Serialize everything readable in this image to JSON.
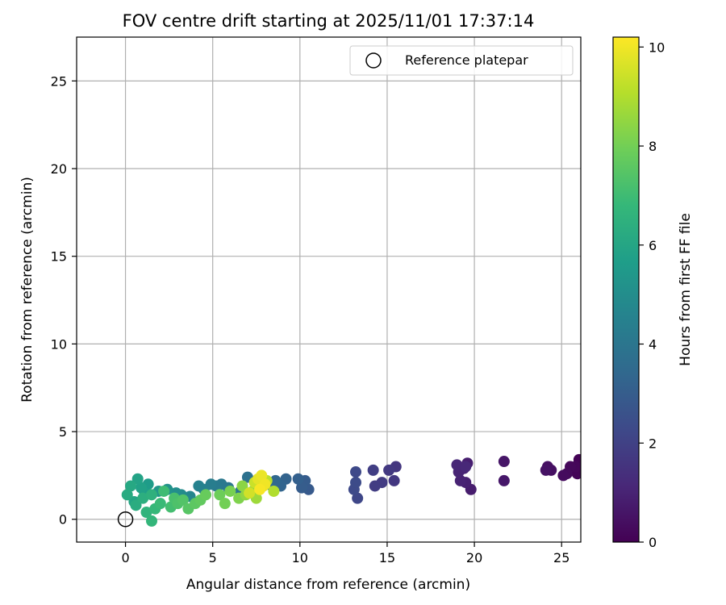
{
  "chart_data": {
    "type": "scatter",
    "title": "FOV centre drift starting at 2025/11/01 17:37:14",
    "xlabel": "Angular distance from reference (arcmin)",
    "ylabel": "Rotation from reference (arcmin)",
    "xlim": [
      -2.8,
      26.1
    ],
    "ylim": [
      -1.3,
      27.5
    ],
    "xticks": [
      0,
      5,
      10,
      15,
      20,
      25
    ],
    "yticks": [
      0,
      5,
      10,
      15,
      20,
      25
    ],
    "grid": true,
    "legend": {
      "placement": "top-right",
      "entries": [
        "Reference platepar"
      ]
    },
    "colorbar": {
      "label": "Hours from first FF file",
      "colormap": "viridis",
      "range": [
        0,
        10.2
      ],
      "ticks": [
        0,
        2,
        4,
        6,
        8,
        10
      ],
      "stops": [
        "#440154",
        "#482878",
        "#3e4989",
        "#31688e",
        "#26828e",
        "#1f9e89",
        "#35b779",
        "#6ece58",
        "#b5de2b",
        "#fde725"
      ]
    },
    "reference": {
      "x": 0,
      "y": 0
    },
    "series": [
      {
        "name": "FOV centre drift",
        "points": [
          {
            "x": 26.0,
            "y": 3.4,
            "t": 0.05
          },
          {
            "x": 25.9,
            "y": 2.6,
            "t": 0.1
          },
          {
            "x": 25.8,
            "y": 3.0,
            "t": 0.15
          },
          {
            "x": 25.5,
            "y": 3.0,
            "t": 0.2
          },
          {
            "x": 25.3,
            "y": 2.6,
            "t": 0.25
          },
          {
            "x": 25.1,
            "y": 2.5,
            "t": 0.3
          },
          {
            "x": 24.4,
            "y": 2.8,
            "t": 0.4
          },
          {
            "x": 24.2,
            "y": 3.0,
            "t": 0.45
          },
          {
            "x": 24.1,
            "y": 2.8,
            "t": 0.5
          },
          {
            "x": 21.7,
            "y": 3.3,
            "t": 0.6
          },
          {
            "x": 21.7,
            "y": 2.2,
            "t": 0.65
          },
          {
            "x": 19.8,
            "y": 1.7,
            "t": 0.8
          },
          {
            "x": 19.6,
            "y": 3.2,
            "t": 0.85
          },
          {
            "x": 19.5,
            "y": 2.1,
            "t": 0.9
          },
          {
            "x": 19.4,
            "y": 2.9,
            "t": 0.95
          },
          {
            "x": 19.2,
            "y": 2.2,
            "t": 1.0
          },
          {
            "x": 19.1,
            "y": 2.7,
            "t": 1.05
          },
          {
            "x": 19.0,
            "y": 3.1,
            "t": 1.1
          },
          {
            "x": 19.5,
            "y": 3.0,
            "t": 1.15
          },
          {
            "x": 15.5,
            "y": 3.0,
            "t": 1.6
          },
          {
            "x": 15.4,
            "y": 2.2,
            "t": 1.65
          },
          {
            "x": 15.1,
            "y": 2.8,
            "t": 1.7
          },
          {
            "x": 14.7,
            "y": 2.1,
            "t": 1.8
          },
          {
            "x": 14.3,
            "y": 1.9,
            "t": 1.85
          },
          {
            "x": 14.2,
            "y": 2.8,
            "t": 1.9
          },
          {
            "x": 13.3,
            "y": 1.2,
            "t": 2.2
          },
          {
            "x": 13.2,
            "y": 2.7,
            "t": 2.25
          },
          {
            "x": 13.1,
            "y": 1.7,
            "t": 2.3
          },
          {
            "x": 13.2,
            "y": 2.1,
            "t": 2.35
          },
          {
            "x": 10.5,
            "y": 1.7,
            "t": 2.9
          },
          {
            "x": 10.3,
            "y": 2.2,
            "t": 2.95
          },
          {
            "x": 10.1,
            "y": 1.8,
            "t": 3.0
          },
          {
            "x": 9.9,
            "y": 2.3,
            "t": 3.1
          },
          {
            "x": 9.2,
            "y": 2.3,
            "t": 3.2
          },
          {
            "x": 8.9,
            "y": 1.9,
            "t": 3.3
          },
          {
            "x": 8.6,
            "y": 2.2,
            "t": 3.4
          },
          {
            "x": 8.2,
            "y": 2.0,
            "t": 3.5
          },
          {
            "x": 7.6,
            "y": 1.8,
            "t": 3.6
          },
          {
            "x": 7.2,
            "y": 1.5,
            "t": 3.7
          },
          {
            "x": 7.0,
            "y": 2.4,
            "t": 3.8
          },
          {
            "x": 6.6,
            "y": 1.6,
            "t": 3.9
          },
          {
            "x": 5.9,
            "y": 1.8,
            "t": 4.0
          },
          {
            "x": 5.5,
            "y": 2.0,
            "t": 4.1
          },
          {
            "x": 5.2,
            "y": 1.9,
            "t": 4.2
          },
          {
            "x": 4.9,
            "y": 2.0,
            "t": 4.3
          },
          {
            "x": 4.5,
            "y": 1.7,
            "t": 4.4
          },
          {
            "x": 4.2,
            "y": 1.9,
            "t": 4.5
          },
          {
            "x": 3.7,
            "y": 1.3,
            "t": 4.7
          },
          {
            "x": 3.2,
            "y": 1.4,
            "t": 4.9
          },
          {
            "x": 2.9,
            "y": 1.5,
            "t": 5.0
          },
          {
            "x": 2.4,
            "y": 1.7,
            "t": 5.2
          },
          {
            "x": 1.9,
            "y": 1.6,
            "t": 5.4
          },
          {
            "x": 1.3,
            "y": 2.0,
            "t": 5.6
          },
          {
            "x": 1.1,
            "y": 1.5,
            "t": 5.7
          },
          {
            "x": 0.9,
            "y": 1.8,
            "t": 5.8
          },
          {
            "x": 0.7,
            "y": 2.3,
            "t": 5.9
          },
          {
            "x": 0.5,
            "y": 1.0,
            "t": 6.0
          },
          {
            "x": 0.3,
            "y": 1.9,
            "t": 6.1
          },
          {
            "x": 0.1,
            "y": 1.4,
            "t": 6.2
          },
          {
            "x": 0.6,
            "y": 0.8,
            "t": 6.3
          },
          {
            "x": 1.0,
            "y": 1.2,
            "t": 6.4
          },
          {
            "x": 1.5,
            "y": 1.4,
            "t": 6.5
          },
          {
            "x": 1.2,
            "y": 0.4,
            "t": 6.6
          },
          {
            "x": 1.5,
            "y": -0.1,
            "t": 6.7
          },
          {
            "x": 1.7,
            "y": 0.6,
            "t": 6.8
          },
          {
            "x": 2.0,
            "y": 0.9,
            "t": 6.9
          },
          {
            "x": 2.2,
            "y": 1.6,
            "t": 7.0
          },
          {
            "x": 2.6,
            "y": 0.7,
            "t": 7.1
          },
          {
            "x": 2.8,
            "y": 1.2,
            "t": 7.2
          },
          {
            "x": 3.0,
            "y": 0.9,
            "t": 7.3
          },
          {
            "x": 3.3,
            "y": 1.1,
            "t": 7.4
          },
          {
            "x": 3.6,
            "y": 0.6,
            "t": 7.5
          },
          {
            "x": 4.0,
            "y": 0.9,
            "t": 7.6
          },
          {
            "x": 4.3,
            "y": 1.1,
            "t": 7.7
          },
          {
            "x": 4.6,
            "y": 1.4,
            "t": 7.8
          },
          {
            "x": 5.4,
            "y": 1.4,
            "t": 7.9
          },
          {
            "x": 5.7,
            "y": 0.9,
            "t": 8.0
          },
          {
            "x": 6.0,
            "y": 1.6,
            "t": 8.1
          },
          {
            "x": 6.5,
            "y": 1.2,
            "t": 8.2
          },
          {
            "x": 6.7,
            "y": 1.9,
            "t": 8.4
          },
          {
            "x": 6.9,
            "y": 1.4,
            "t": 8.5
          },
          {
            "x": 7.3,
            "y": 1.6,
            "t": 8.6
          },
          {
            "x": 7.5,
            "y": 1.2,
            "t": 8.7
          },
          {
            "x": 7.7,
            "y": 1.9,
            "t": 8.9
          },
          {
            "x": 8.5,
            "y": 1.6,
            "t": 9.0
          },
          {
            "x": 8.1,
            "y": 2.2,
            "t": 9.2
          },
          {
            "x": 7.4,
            "y": 2.1,
            "t": 9.4
          },
          {
            "x": 7.1,
            "y": 1.5,
            "t": 9.5
          },
          {
            "x": 7.9,
            "y": 1.9,
            "t": 9.7
          },
          {
            "x": 7.6,
            "y": 2.3,
            "t": 9.8
          },
          {
            "x": 7.8,
            "y": 2.5,
            "t": 9.9
          },
          {
            "x": 8.0,
            "y": 2.0,
            "t": 10.0
          },
          {
            "x": 7.7,
            "y": 1.7,
            "t": 10.1
          }
        ]
      }
    ]
  }
}
